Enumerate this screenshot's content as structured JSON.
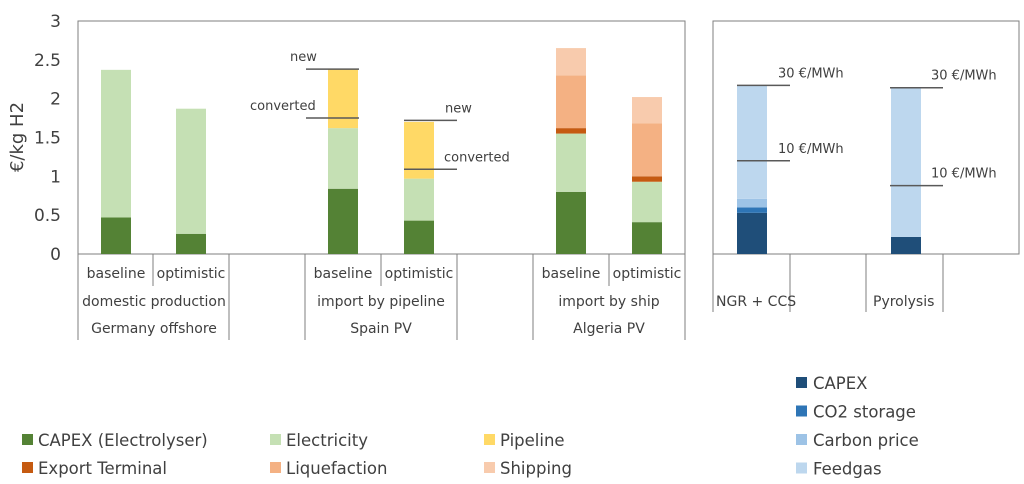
{
  "chart_data": [
    {
      "type": "bar",
      "stacked": true,
      "ylabel": "€/kg H2",
      "ylim": [
        0,
        3
      ],
      "yticks": [
        "0",
        "0.5",
        "1",
        "1.5",
        "2",
        "2.5",
        "3"
      ],
      "bars": [
        {
          "label": "baseline",
          "values": {
            "CAPEX (Electrolyser)": 0.47,
            "Electricity": 1.9
          }
        },
        {
          "label": "optimistic",
          "values": {
            "CAPEX (Electrolyser)": 0.26,
            "Electricity": 1.61
          }
        },
        {
          "label": "baseline",
          "values": {
            "CAPEX (Electrolyser)": 0.84,
            "Electricity": 0.78,
            "Pipeline": 0.76
          }
        },
        {
          "label": "optimistic",
          "values": {
            "CAPEX (Electrolyser)": 0.43,
            "Electricity": 0.54,
            "Pipeline": 0.73
          }
        },
        {
          "label": "baseline",
          "values": {
            "CAPEX (Electrolyser)": 0.8,
            "Electricity": 0.75,
            "Export Terminal": 0.07,
            "Liquefaction": 0.68,
            "Shipping": 0.35
          }
        },
        {
          "label": "optimistic",
          "values": {
            "CAPEX (Electrolyser)": 0.41,
            "Electricity": 0.52,
            "Export Terminal": 0.07,
            "Liquefaction": 0.68,
            "Shipping": 0.34
          }
        }
      ],
      "groups": [
        {
          "middle": "domestic production",
          "bottom": "Germany offshore"
        },
        {
          "middle": "import by pipeline",
          "bottom": "Spain PV"
        },
        {
          "middle": "import by ship",
          "bottom": "Algeria PV"
        }
      ],
      "annotations": [
        {
          "text": "new",
          "bar": 2,
          "y": 2.38
        },
        {
          "text": "converted",
          "bar": 2,
          "y": 1.75
        },
        {
          "text": "new",
          "bar": 3,
          "y": 1.72
        },
        {
          "text": "converted",
          "bar": 3,
          "y": 1.09
        }
      ],
      "series": [
        {
          "name": "CAPEX (Electrolyser)",
          "color": "#548235"
        },
        {
          "name": "Electricity",
          "color": "#c5e0b4"
        },
        {
          "name": "Pipeline",
          "color": "#ffd966"
        },
        {
          "name": "Export Terminal",
          "color": "#c55a11"
        },
        {
          "name": "Liquefaction",
          "color": "#f4b183"
        },
        {
          "name": "Shipping",
          "color": "#f8cbad"
        }
      ]
    },
    {
      "type": "bar",
      "stacked": true,
      "ylim": [
        0,
        3
      ],
      "bars": [
        {
          "label": "NGR + CCS",
          "values": {
            "CAPEX": 0.53,
            "CO2 storage": 0.07,
            "Carbon price": 0.11,
            "Feedgas": 1.46
          }
        },
        {
          "label": "Pyrolysis",
          "values": {
            "CAPEX": 0.22,
            "CO2 storage": 0,
            "Carbon price": 0,
            "Feedgas": 1.92
          }
        }
      ],
      "annotations": [
        {
          "text": "30 €/MWh",
          "bar": 0,
          "y": 2.17
        },
        {
          "text": "10 €/MWh",
          "bar": 0,
          "y": 1.2
        },
        {
          "text": "30 €/MWh",
          "bar": 1,
          "y": 2.14
        },
        {
          "text": "10 €/MWh",
          "bar": 1,
          "y": 0.88
        }
      ],
      "series": [
        {
          "name": "CAPEX",
          "color": "#1f4e79"
        },
        {
          "name": "CO2 storage",
          "color": "#2e75b6"
        },
        {
          "name": "Carbon price",
          "color": "#9dc3e6"
        },
        {
          "name": "Feedgas",
          "color": "#bdd7ee"
        }
      ]
    }
  ]
}
